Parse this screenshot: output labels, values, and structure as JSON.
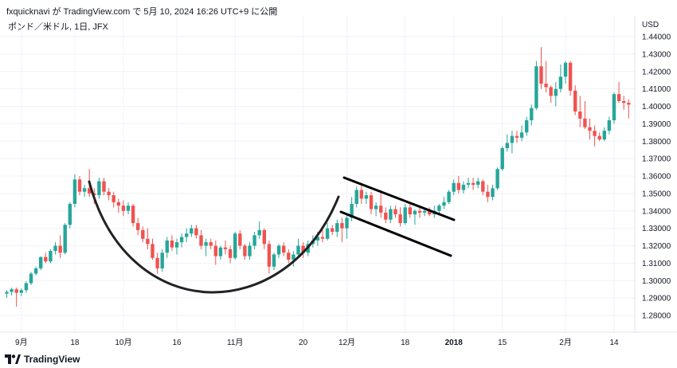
{
  "header": {
    "text": "fxquicknavi が TradingView.com で 5月 10, 2024 16:26 UTC+9 に公開"
  },
  "symbol": {
    "text": "ポンド／米ドル, 1日, JFX"
  },
  "footer": {
    "brand": "TradingView",
    "logo_icon": "tradingview-logo-icon"
  },
  "colors": {
    "up": "#26a69a",
    "down": "#ef5350",
    "drawing": "#000000",
    "grid": "#f0f3fa",
    "axis_text": "#131722"
  },
  "chart_data": {
    "type": "candlestick",
    "currency": "USD",
    "ylim": [
      1.275,
      1.445
    ],
    "y_ticks": [
      "1.28000",
      "1.29000",
      "1.30000",
      "1.31000",
      "1.32000",
      "1.33000",
      "1.34000",
      "1.35000",
      "1.36000",
      "1.37000",
      "1.38000",
      "1.39000",
      "1.40000",
      "1.41000",
      "1.42000",
      "1.43000",
      "1.44000"
    ],
    "x_ticks": [
      {
        "label": "9月",
        "index": 3,
        "bold": false
      },
      {
        "label": "18",
        "index": 14,
        "bold": false
      },
      {
        "label": "10月",
        "index": 24,
        "bold": false
      },
      {
        "label": "16",
        "index": 35,
        "bold": false
      },
      {
        "label": "11月",
        "index": 47,
        "bold": false
      },
      {
        "label": "20",
        "index": 61,
        "bold": false
      },
      {
        "label": "12月",
        "index": 70,
        "bold": false
      },
      {
        "label": "18",
        "index": 82,
        "bold": false
      },
      {
        "label": "2018",
        "index": 92,
        "bold": true
      },
      {
        "label": "15",
        "index": 102,
        "bold": false
      },
      {
        "label": "2月",
        "index": 115,
        "bold": false
      },
      {
        "label": "14",
        "index": 125,
        "bold": false
      }
    ],
    "ohlc": [
      [
        1.2925,
        1.2945,
        1.29,
        1.2935
      ],
      [
        1.2935,
        1.296,
        1.2915,
        1.295
      ],
      [
        1.295,
        1.296,
        1.285,
        1.293
      ],
      [
        1.293,
        1.2955,
        1.291,
        1.2945
      ],
      [
        1.2945,
        1.2995,
        1.293,
        1.2985
      ],
      [
        1.2985,
        1.305,
        1.2975,
        1.304
      ],
      [
        1.304,
        1.308,
        1.303,
        1.307
      ],
      [
        1.307,
        1.314,
        1.306,
        1.3135
      ],
      [
        1.3135,
        1.316,
        1.31,
        1.311
      ],
      [
        1.311,
        1.318,
        1.31,
        1.317
      ],
      [
        1.317,
        1.322,
        1.315,
        1.32
      ],
      [
        1.32,
        1.326,
        1.313,
        1.316
      ],
      [
        1.316,
        1.333,
        1.315,
        1.332
      ],
      [
        1.332,
        1.345,
        1.33,
        1.344
      ],
      [
        1.344,
        1.361,
        1.342,
        1.358
      ],
      [
        1.358,
        1.36,
        1.349,
        1.351
      ],
      [
        1.351,
        1.355,
        1.348,
        1.353
      ],
      [
        1.353,
        1.364,
        1.348,
        1.35
      ],
      [
        1.35,
        1.353,
        1.344,
        1.349
      ],
      [
        1.349,
        1.359,
        1.347,
        1.357
      ],
      [
        1.357,
        1.359,
        1.349,
        1.351
      ],
      [
        1.351,
        1.353,
        1.346,
        1.349
      ],
      [
        1.349,
        1.351,
        1.342,
        1.345
      ],
      [
        1.345,
        1.347,
        1.339,
        1.343
      ],
      [
        1.343,
        1.346,
        1.337,
        1.34
      ],
      [
        1.34,
        1.345,
        1.338,
        1.343
      ],
      [
        1.343,
        1.344,
        1.331,
        1.333
      ],
      [
        1.333,
        1.336,
        1.326,
        1.329
      ],
      [
        1.329,
        1.331,
        1.322,
        1.324
      ],
      [
        1.324,
        1.33,
        1.318,
        1.321
      ],
      [
        1.321,
        1.324,
        1.312,
        1.313
      ],
      [
        1.313,
        1.316,
        1.304,
        1.307
      ],
      [
        1.307,
        1.318,
        1.305,
        1.316
      ],
      [
        1.316,
        1.325,
        1.313,
        1.323
      ],
      [
        1.323,
        1.326,
        1.317,
        1.319
      ],
      [
        1.319,
        1.324,
        1.315,
        1.322
      ],
      [
        1.322,
        1.327,
        1.319,
        1.325
      ],
      [
        1.325,
        1.33,
        1.322,
        1.327
      ],
      [
        1.327,
        1.332,
        1.325,
        1.33
      ],
      [
        1.33,
        1.332,
        1.324,
        1.326
      ],
      [
        1.326,
        1.329,
        1.318,
        1.32
      ],
      [
        1.32,
        1.324,
        1.314,
        1.322
      ],
      [
        1.322,
        1.324,
        1.318,
        1.32
      ],
      [
        1.32,
        1.323,
        1.309,
        1.314
      ],
      [
        1.314,
        1.32,
        1.312,
        1.319
      ],
      [
        1.319,
        1.323,
        1.315,
        1.318
      ],
      [
        1.318,
        1.32,
        1.31,
        1.313
      ],
      [
        1.313,
        1.328,
        1.312,
        1.327
      ],
      [
        1.327,
        1.329,
        1.318,
        1.32
      ],
      [
        1.32,
        1.321,
        1.312,
        1.314
      ],
      [
        1.314,
        1.322,
        1.312,
        1.32
      ],
      [
        1.32,
        1.328,
        1.318,
        1.326
      ],
      [
        1.326,
        1.334,
        1.324,
        1.329
      ],
      [
        1.329,
        1.33,
        1.318,
        1.321
      ],
      [
        1.321,
        1.323,
        1.304,
        1.308
      ],
      [
        1.308,
        1.316,
        1.306,
        1.315
      ],
      [
        1.315,
        1.321,
        1.313,
        1.32
      ],
      [
        1.32,
        1.322,
        1.314,
        1.316
      ],
      [
        1.316,
        1.318,
        1.31,
        1.312
      ],
      [
        1.312,
        1.317,
        1.308,
        1.315
      ],
      [
        1.315,
        1.324,
        1.313,
        1.32
      ],
      [
        1.32,
        1.322,
        1.313,
        1.316
      ],
      [
        1.316,
        1.323,
        1.314,
        1.321
      ],
      [
        1.321,
        1.326,
        1.319,
        1.323
      ],
      [
        1.323,
        1.328,
        1.32,
        1.325
      ],
      [
        1.325,
        1.329,
        1.322,
        1.324
      ],
      [
        1.324,
        1.333,
        1.323,
        1.33
      ],
      [
        1.33,
        1.332,
        1.326,
        1.328
      ],
      [
        1.328,
        1.335,
        1.325,
        1.333
      ],
      [
        1.333,
        1.336,
        1.322,
        1.33
      ],
      [
        1.33,
        1.338,
        1.324,
        1.336
      ],
      [
        1.336,
        1.348,
        1.334,
        1.344
      ],
      [
        1.344,
        1.354,
        1.342,
        1.352
      ],
      [
        1.352,
        1.356,
        1.344,
        1.347
      ],
      [
        1.347,
        1.351,
        1.344,
        1.349
      ],
      [
        1.349,
        1.351,
        1.338,
        1.341
      ],
      [
        1.341,
        1.345,
        1.337,
        1.343
      ],
      [
        1.343,
        1.352,
        1.336,
        1.339
      ],
      [
        1.339,
        1.342,
        1.333,
        1.335
      ],
      [
        1.335,
        1.343,
        1.333,
        1.341
      ],
      [
        1.341,
        1.343,
        1.336,
        1.338
      ],
      [
        1.338,
        1.342,
        1.331,
        1.333
      ],
      [
        1.333,
        1.344,
        1.332,
        1.342
      ],
      [
        1.342,
        1.344,
        1.336,
        1.338
      ],
      [
        1.338,
        1.341,
        1.332,
        1.34
      ],
      [
        1.34,
        1.342,
        1.336,
        1.339
      ],
      [
        1.339,
        1.341,
        1.337,
        1.34
      ],
      [
        1.34,
        1.342,
        1.337,
        1.338
      ],
      [
        1.338,
        1.343,
        1.336,
        1.34
      ],
      [
        1.34,
        1.344,
        1.338,
        1.343
      ],
      [
        1.343,
        1.348,
        1.341,
        1.345
      ],
      [
        1.345,
        1.352,
        1.344,
        1.351
      ],
      [
        1.351,
        1.358,
        1.349,
        1.356
      ],
      [
        1.356,
        1.36,
        1.35,
        1.352
      ],
      [
        1.352,
        1.357,
        1.35,
        1.355
      ],
      [
        1.355,
        1.359,
        1.353,
        1.356
      ],
      [
        1.356,
        1.359,
        1.352,
        1.355
      ],
      [
        1.355,
        1.359,
        1.353,
        1.357
      ],
      [
        1.357,
        1.358,
        1.349,
        1.351
      ],
      [
        1.351,
        1.355,
        1.345,
        1.348
      ],
      [
        1.348,
        1.355,
        1.346,
        1.353
      ],
      [
        1.353,
        1.365,
        1.352,
        1.364
      ],
      [
        1.364,
        1.377,
        1.363,
        1.376
      ],
      [
        1.376,
        1.384,
        1.374,
        1.379
      ],
      [
        1.379,
        1.386,
        1.373,
        1.383
      ],
      [
        1.383,
        1.386,
        1.379,
        1.382
      ],
      [
        1.382,
        1.389,
        1.38,
        1.385
      ],
      [
        1.385,
        1.394,
        1.383,
        1.392
      ],
      [
        1.392,
        1.401,
        1.389,
        1.399
      ],
      [
        1.399,
        1.426,
        1.398,
        1.423
      ],
      [
        1.423,
        1.434,
        1.41,
        1.413
      ],
      [
        1.413,
        1.426,
        1.408,
        1.411
      ],
      [
        1.411,
        1.412,
        1.402,
        1.406
      ],
      [
        1.406,
        1.414,
        1.4,
        1.41
      ],
      [
        1.41,
        1.424,
        1.408,
        1.417
      ],
      [
        1.417,
        1.426,
        1.413,
        1.425
      ],
      [
        1.425,
        1.426,
        1.406,
        1.409
      ],
      [
        1.409,
        1.412,
        1.395,
        1.397
      ],
      [
        1.397,
        1.406,
        1.388,
        1.393
      ],
      [
        1.393,
        1.403,
        1.387,
        1.388
      ],
      [
        1.388,
        1.393,
        1.381,
        1.386
      ],
      [
        1.386,
        1.389,
        1.377,
        1.383
      ],
      [
        1.383,
        1.385,
        1.38,
        1.381
      ],
      [
        1.381,
        1.388,
        1.38,
        1.386
      ],
      [
        1.386,
        1.394,
        1.384,
        1.392
      ],
      [
        1.392,
        1.408,
        1.39,
        1.407
      ],
      [
        1.407,
        1.414,
        1.402,
        1.403
      ],
      [
        1.403,
        1.406,
        1.398,
        1.402
      ],
      [
        1.402,
        1.404,
        1.393,
        1.401
      ]
    ],
    "annotations": [
      {
        "type": "curve",
        "name": "cup"
      },
      {
        "type": "line",
        "name": "channel-upper"
      },
      {
        "type": "line",
        "name": "channel-lower"
      }
    ]
  }
}
